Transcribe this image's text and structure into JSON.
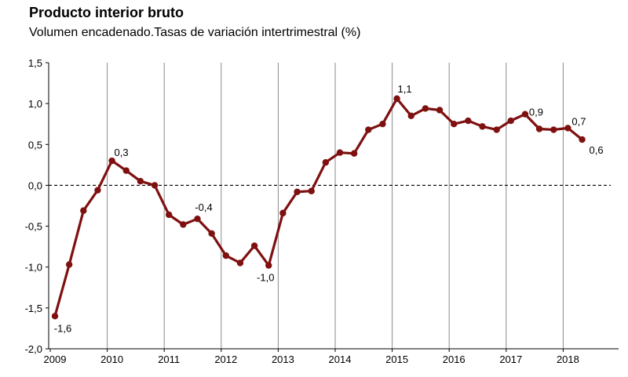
{
  "chart_data": {
    "type": "line",
    "title": "Producto interior bruto",
    "subtitle": "Volumen encadenado.Tasas de variación intertrimestral (%)",
    "xlabel": "",
    "ylabel": "",
    "ylim": [
      -2.0,
      1.5
    ],
    "yticks": [
      1.5,
      1.0,
      0.5,
      0.0,
      -0.5,
      -1.0,
      -1.5,
      -2.0
    ],
    "ytick_labels": [
      "1,5",
      "1,0",
      "0,5",
      "0,0",
      "-0,5",
      "-1,0",
      "-1,5",
      "-2,0"
    ],
    "x_year_labels": [
      "2009",
      "2010",
      "2011",
      "2012",
      "2013",
      "2014",
      "2015",
      "2016",
      "2017",
      "2018"
    ],
    "reference_line": 0.0,
    "line_color": "#7f1010",
    "series": [
      {
        "name": "PIB",
        "values": [
          -1.6,
          -0.97,
          -0.31,
          -0.06,
          0.3,
          0.18,
          0.05,
          0.0,
          -0.36,
          -0.48,
          -0.41,
          -0.59,
          -0.86,
          -0.95,
          -0.74,
          -0.98,
          -0.34,
          -0.08,
          -0.07,
          0.28,
          0.4,
          0.39,
          0.68,
          0.75,
          1.06,
          0.85,
          0.94,
          0.92,
          0.75,
          0.79,
          0.72,
          0.68,
          0.79,
          0.87,
          0.69,
          0.68,
          0.7,
          0.56
        ]
      }
    ],
    "annotations": [
      {
        "index": 0,
        "text": "-1,6"
      },
      {
        "index": 4,
        "text": "0,3"
      },
      {
        "index": 10,
        "text": "-0,4"
      },
      {
        "index": 15,
        "text": "-1,0"
      },
      {
        "index": 24,
        "text": "1,1"
      },
      {
        "index": 33,
        "text": "0,9"
      },
      {
        "index": 36,
        "text": "0,7"
      },
      {
        "index": 37,
        "text": "0,6"
      }
    ]
  }
}
